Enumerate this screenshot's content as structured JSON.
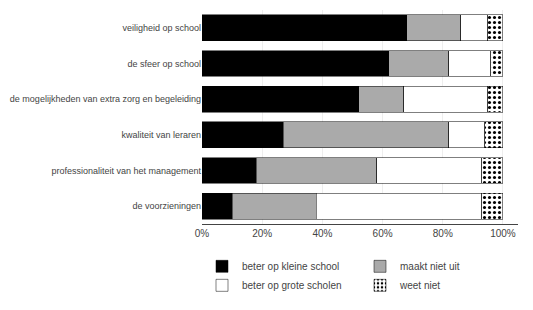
{
  "chart_data": {
    "type": "bar",
    "orientation": "horizontal",
    "stacked": true,
    "categories": [
      "de voorzieningen",
      "professionaliteit van het management",
      "kwaliteit van leraren",
      "de mogelijkheden van extra zorg en begeleiding",
      "de sfeer op school",
      "veiligheid op school"
    ],
    "series": [
      {
        "name": "beter op kleine school",
        "color": "#000000",
        "values": [
          10,
          18,
          27,
          52,
          62,
          68
        ]
      },
      {
        "name": "maakt niet uit",
        "color": "#aaaaaa",
        "values": [
          28,
          40,
          55,
          15,
          20,
          18
        ]
      },
      {
        "name": "beter op grote scholen",
        "color": "#ffffff",
        "values": [
          55,
          35,
          12,
          28,
          14,
          9
        ]
      },
      {
        "name": "weet niet",
        "color": "#ffffff",
        "marker": "dots",
        "values": [
          7,
          7,
          6,
          5,
          4,
          5
        ]
      }
    ],
    "xlim": [
      0,
      105
    ],
    "xticks": [
      {
        "value": 0,
        "label": "0%"
      },
      {
        "value": 20,
        "label": "20%"
      },
      {
        "value": 40,
        "label": "40%"
      },
      {
        "value": 60,
        "label": "60%"
      },
      {
        "value": 80,
        "label": "80%"
      },
      {
        "value": 100,
        "label": "100%"
      }
    ],
    "grid": true,
    "legend": "bottom"
  }
}
